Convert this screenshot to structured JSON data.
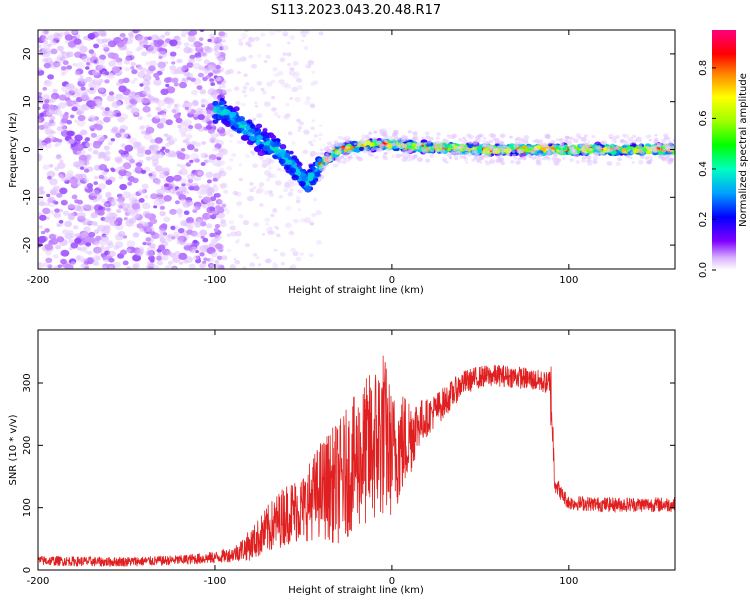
{
  "figure": {
    "title": "S113.2023.043.20.48.R17"
  },
  "chart_data": [
    {
      "type": "heatmap",
      "xlabel": "Height of straight line (km)",
      "ylabel": "Frequency (Hz)",
      "xlim": [
        -200,
        160
      ],
      "ylim": [
        -25,
        25
      ],
      "xticks": [
        -200,
        -100,
        0,
        100
      ],
      "yticks": [
        20,
        10,
        0,
        -10,
        -20
      ],
      "colorbar": {
        "label": "Normalized spectral amplitude",
        "range": [
          0.0,
          0.95
        ],
        "ticks": [
          "0.0",
          "0.2",
          "0.4",
          "0.6",
          "0.8"
        ],
        "tick_values": [
          0.0,
          0.2,
          0.4,
          0.6,
          0.8
        ],
        "colormap": [
          "#ffffff",
          "#c080ff",
          "#6000ff",
          "#0000ff",
          "#00c0ff",
          "#00ff80",
          "#80ff00",
          "#ffff00",
          "#ff8000",
          "#ff0000",
          "#ff00a0"
        ]
      },
      "description_of_content": "Diffuse low-amplitude purple scatter for heights -200 to -100 km across all frequencies; a descending band from about 8 Hz at -95 km to about -7 Hz at -50 km; a narrow ridge near 0 to 1 Hz from -35 km to 160 km with peak amplitudes (red) near the center line.",
      "ridge": [
        [
          -95,
          8
        ],
        [
          -85,
          5
        ],
        [
          -75,
          2
        ],
        [
          -65,
          0
        ],
        [
          -55,
          -4
        ],
        [
          -48,
          -7
        ],
        [
          -40,
          -3
        ],
        [
          -30,
          0
        ],
        [
          -15,
          1
        ],
        [
          0,
          1
        ],
        [
          20,
          0.5
        ],
        [
          50,
          0
        ],
        [
          90,
          0
        ],
        [
          120,
          0
        ],
        [
          160,
          0
        ]
      ]
    },
    {
      "type": "line",
      "xlabel": "Height of straight line (km)",
      "ylabel": "SNR (10 * v/v)",
      "xlim": [
        -200,
        160
      ],
      "ylim": [
        0,
        385
      ],
      "xticks": [
        -200,
        -100,
        0,
        100
      ],
      "yticks": [
        0,
        100,
        200,
        300
      ],
      "color": "#e02020",
      "series": [
        {
          "x": [
            -200,
            -180,
            -160,
            -140,
            -120,
            -100,
            -90,
            -80,
            -70,
            -60,
            -50,
            -40,
            -30,
            -20,
            -10,
            -5,
            0,
            5,
            10,
            15,
            20,
            30,
            40,
            50,
            60,
            70,
            80,
            88,
            90,
            92,
            95,
            100,
            120,
            140,
            160
          ],
          "y": [
            15,
            14,
            13,
            14,
            16,
            20,
            25,
            40,
            65,
            90,
            100,
            130,
            140,
            175,
            200,
            220,
            185,
            200,
            215,
            235,
            245,
            270,
            300,
            310,
            312,
            310,
            305,
            300,
            280,
            145,
            125,
            108,
            105,
            105,
            105
          ],
          "noise": [
            8,
            8,
            8,
            8,
            8,
            10,
            12,
            25,
            40,
            50,
            55,
            80,
            100,
            110,
            130,
            140,
            100,
            90,
            70,
            40,
            30,
            25,
            20,
            18,
            18,
            18,
            18,
            18,
            60,
            20,
            12,
            12,
            12,
            12,
            12
          ]
        }
      ]
    }
  ]
}
